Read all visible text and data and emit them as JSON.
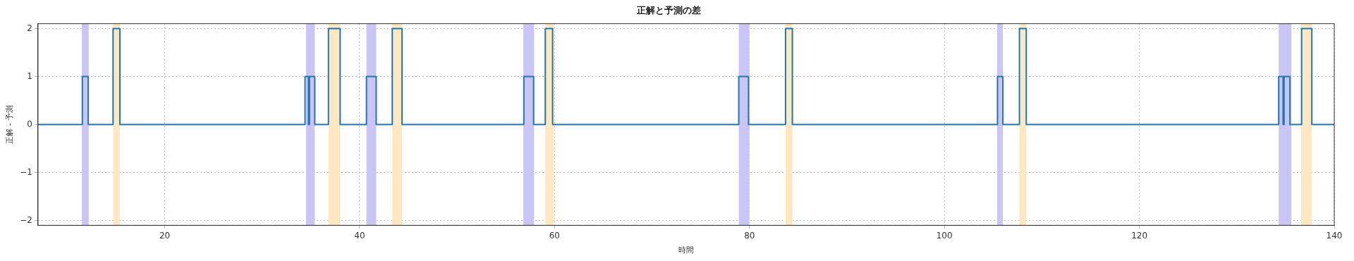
{
  "chart_data": {
    "type": "step",
    "title": "正解と予測の差",
    "xlabel": "時間",
    "ylabel": "正解 - 予測",
    "x": [
      7,
      11.55,
      12.15,
      14.7,
      15.4,
      34.4,
      34.75,
      34.85,
      35.4,
      36.8,
      38.0,
      40.7,
      41.7,
      43.35,
      44.35,
      56.85,
      57.85,
      59.05,
      59.8,
      78.9,
      79.9,
      83.7,
      84.4,
      105.45,
      106.0,
      107.7,
      108.4,
      134.3,
      134.75,
      134.85,
      135.45,
      136.65,
      137.7,
      140
    ],
    "series": [
      {
        "color": "#1f77b4",
        "values": [
          0,
          1,
          0,
          2,
          0,
          1,
          0,
          1,
          0,
          2,
          0,
          1,
          0,
          2,
          0,
          1,
          0,
          2,
          0,
          1,
          0,
          2,
          0,
          1,
          0,
          2,
          0,
          1,
          0,
          1,
          0,
          2,
          0,
          0
        ]
      }
    ],
    "xlim": [
      7,
      140
    ],
    "xticks": [
      20,
      40,
      60,
      80,
      100,
      120,
      140
    ],
    "ylim": [
      -2.1,
      2.1
    ],
    "yticks": [
      {
        "value": -2,
        "label": "−2"
      },
      {
        "value": -1,
        "label": "−1"
      },
      0,
      1,
      2
    ],
    "grid": true,
    "legend": false,
    "bands": [
      {
        "axis": "x",
        "from": 11.5,
        "to": 12.2,
        "color": "#cbc5f5"
      },
      {
        "axis": "x",
        "from": 34.5,
        "to": 35.4,
        "color": "#cbc5f5"
      },
      {
        "axis": "x",
        "from": 40.7,
        "to": 41.7,
        "color": "#cbc5f5"
      },
      {
        "axis": "x",
        "from": 56.8,
        "to": 57.9,
        "color": "#cbc5f5"
      },
      {
        "axis": "x",
        "from": 78.9,
        "to": 80.0,
        "color": "#cbc5f5"
      },
      {
        "axis": "x",
        "from": 105.4,
        "to": 106.0,
        "color": "#cbc5f5"
      },
      {
        "axis": "x",
        "from": 134.3,
        "to": 135.6,
        "color": "#cbc5f5"
      },
      {
        "axis": "x",
        "from": 14.7,
        "to": 15.4,
        "color": "#fde8c2"
      },
      {
        "axis": "x",
        "from": 36.8,
        "to": 38.0,
        "color": "#fde8c2"
      },
      {
        "axis": "x",
        "from": 43.35,
        "to": 44.35,
        "color": "#fde8c2"
      },
      {
        "axis": "x",
        "from": 59.05,
        "to": 59.9,
        "color": "#fde8c2"
      },
      {
        "axis": "x",
        "from": 83.7,
        "to": 84.4,
        "color": "#fde8c2"
      },
      {
        "axis": "x",
        "from": 107.7,
        "to": 108.4,
        "color": "#fde8c2"
      },
      {
        "axis": "x",
        "from": 136.6,
        "to": 137.7,
        "color": "#fde8c2"
      }
    ]
  }
}
